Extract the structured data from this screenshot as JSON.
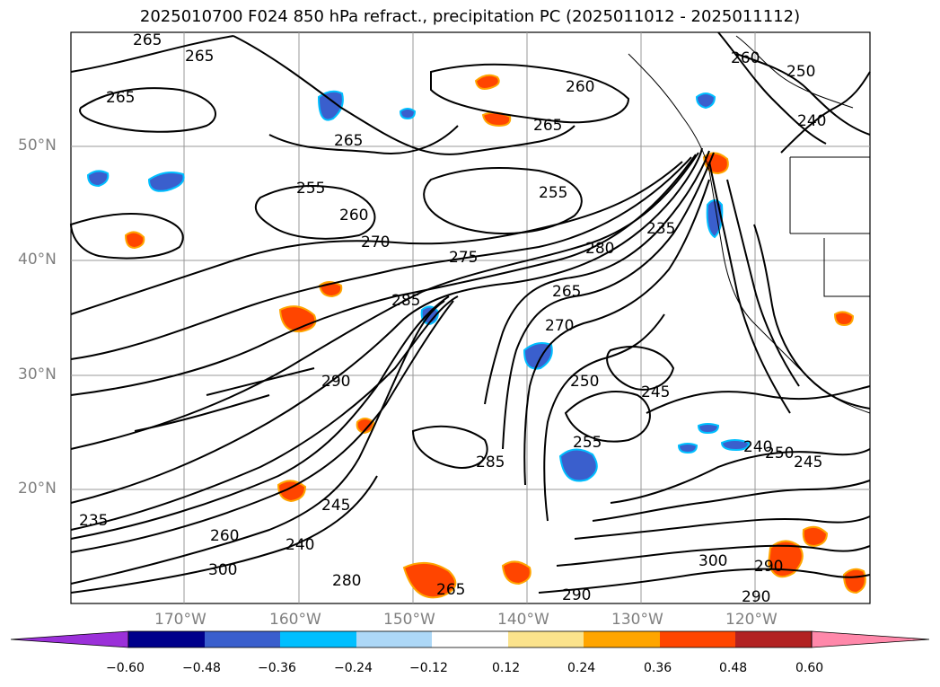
{
  "title": "2025010700 F024 850 hPa refract., precipitation PC (2025011012 - 2025011112)",
  "lat_labels": [
    "50°N",
    "40°N",
    "30°N",
    "20°N"
  ],
  "lon_labels": [
    "170°W",
    "160°W",
    "150°W",
    "140°W",
    "130°W",
    "120°W"
  ],
  "colorbar": {
    "ticks": [
      "−0.60",
      "−0.48",
      "−0.36",
      "−0.24",
      "−0.12",
      "0.12",
      "0.24",
      "0.36",
      "0.48",
      "0.60"
    ],
    "colors": [
      "#9b30d9",
      "#00008b",
      "#3a5fcd",
      "#00bfff",
      "#add8f7",
      "#ffffff",
      "#fbe38c",
      "#ffa500",
      "#ff4500",
      "#b22222",
      "#ff88aa"
    ]
  },
  "contour_labels": [
    "265",
    "265",
    "265",
    "265",
    "255",
    "260",
    "270",
    "275",
    "285",
    "265",
    "255",
    "260",
    "250",
    "240",
    "260",
    "280",
    "235",
    "265",
    "270",
    "250",
    "245",
    "255",
    "240",
    "250",
    "245",
    "285",
    "290",
    "300",
    "290",
    "290",
    "290",
    "280",
    "265",
    "300",
    "240",
    "235",
    "245",
    "260"
  ],
  "shading_colors": {
    "orange": "#ff4500",
    "yellow": "#ffa500",
    "blue": "#3a5fcd",
    "lightblue": "#00bfff"
  }
}
